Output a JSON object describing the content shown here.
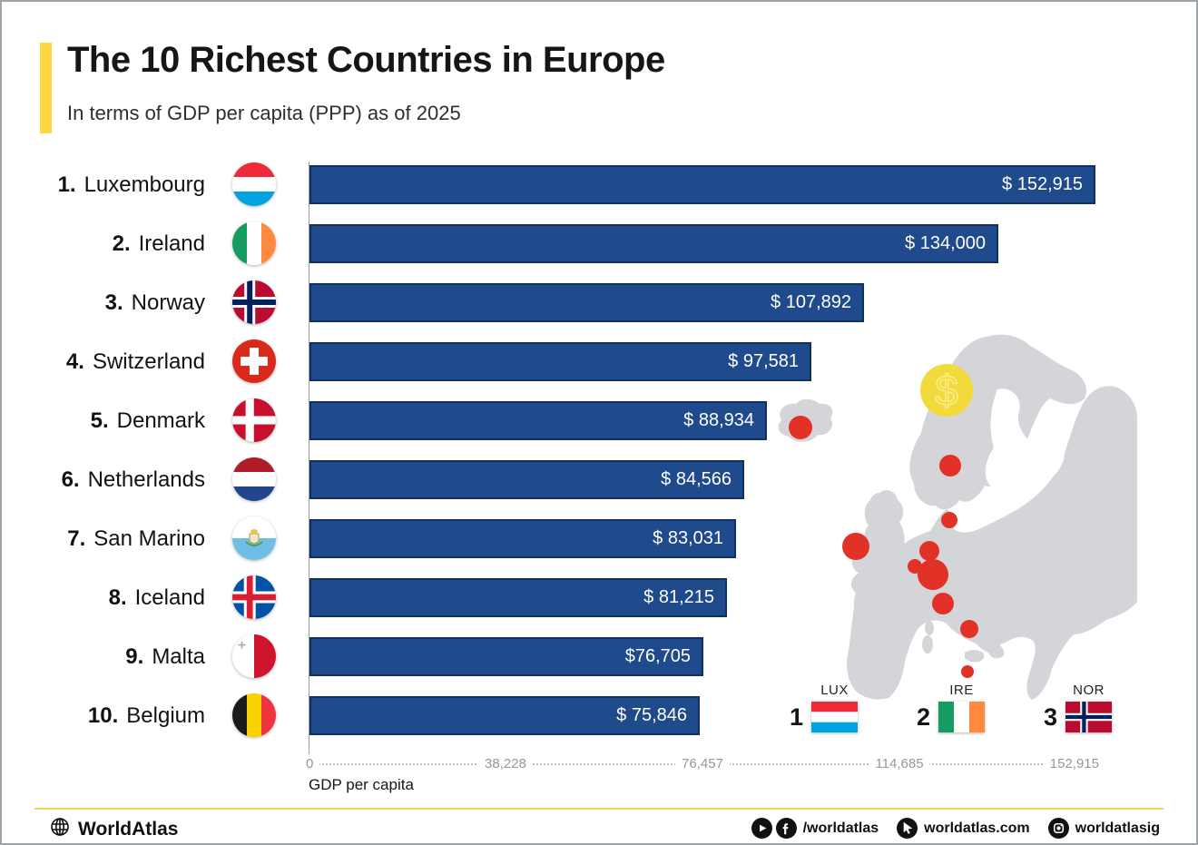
{
  "header": {
    "title": "The 10 Richest Countries in Europe",
    "subtitle": "In terms of GDP per capita (PPP) as of 2025"
  },
  "chart_data": {
    "type": "bar",
    "orientation": "horizontal",
    "title": "The 10 Richest Countries in Europe",
    "subtitle": "In terms of GDP per capita (PPP) as of 2025",
    "xlabel": "GDP per capita",
    "xlim": [
      0,
      152915
    ],
    "x_ticks": [
      "0",
      "38,228",
      "76,457",
      "114,685",
      "152,915"
    ],
    "grid": "dotted-baseline-only",
    "ranks": [
      "1.",
      "2.",
      "3.",
      "4.",
      "5.",
      "6.",
      "7.",
      "8.",
      "9.",
      "10."
    ],
    "categories": [
      "Luxembourg",
      "Ireland",
      "Norway",
      "Switzerland",
      "Denmark",
      "Netherlands",
      "San Marino",
      "Iceland",
      "Malta",
      "Belgium"
    ],
    "values": [
      152915,
      134000,
      107892,
      97581,
      88934,
      84566,
      83031,
      81215,
      76705,
      75846
    ],
    "value_labels": [
      "$ 152,915",
      "$ 134,000",
      "$ 107,892",
      "$ 97,581",
      "$ 88,934",
      "$ 84,566",
      "$ 83,031",
      "$ 81,215",
      "$76,705",
      "$ 75,846"
    ],
    "flags": [
      "LU",
      "IE",
      "NO",
      "CH",
      "DK",
      "NL",
      "SM",
      "IS",
      "MT",
      "BE"
    ]
  },
  "map": {
    "description_icon": "dollar-coin-icon",
    "marked_countries": [
      "Iceland",
      "Norway",
      "Denmark",
      "Ireland",
      "Netherlands",
      "Belgium",
      "Luxembourg",
      "Switzerland",
      "San Marino",
      "Malta"
    ],
    "legend": [
      {
        "rank": "1",
        "label": "LUX",
        "flag": "LU"
      },
      {
        "rank": "2",
        "label": "IRE",
        "flag": "IE"
      },
      {
        "rank": "3",
        "label": "NOR",
        "flag": "NO"
      }
    ]
  },
  "footer": {
    "brand": "WorldAtlas",
    "socials": [
      {
        "icons": [
          "youtube-icon",
          "facebook-icon"
        ],
        "text": "/worldatlas"
      },
      {
        "icons": [
          "cursor-icon"
        ],
        "text": "worldatlas.com"
      },
      {
        "icons": [
          "instagram-icon"
        ],
        "text": "worldatlasig"
      }
    ]
  },
  "colors": {
    "accent_yellow": "#FBD843",
    "bar_blue": "#1F4A8C",
    "bar_border": "#10305F",
    "marker_red": "#E23127",
    "map_gray": "#D3D5D9",
    "coin_yellow": "#F3DA3B",
    "coin_glyph": "#FBEC8A",
    "axis_gray": "#98989a"
  }
}
